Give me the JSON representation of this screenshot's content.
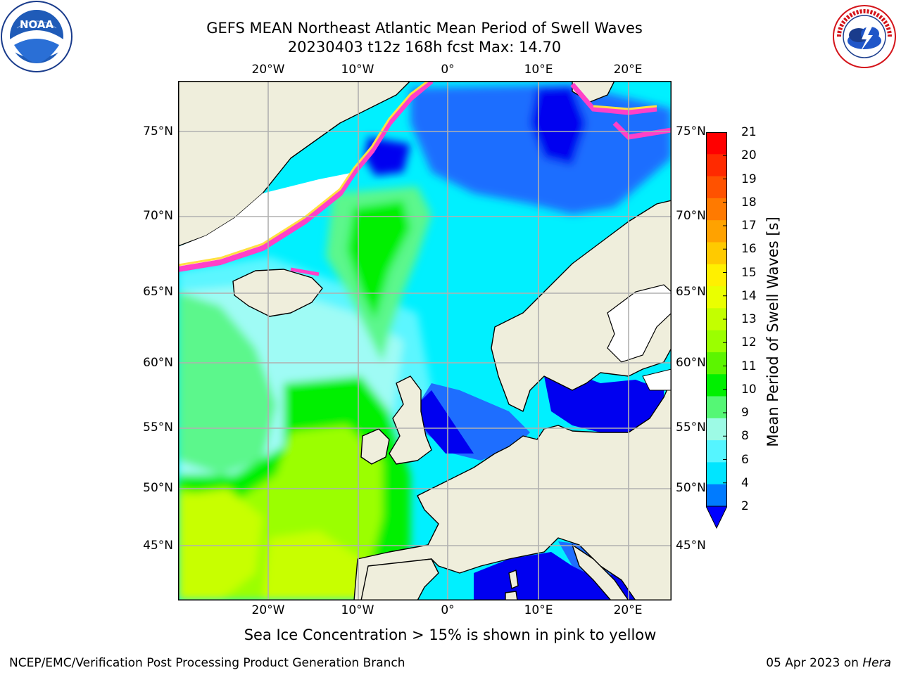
{
  "header": {
    "title": "GEFS MEAN Northeast Atlantic Mean Period of Swell Waves",
    "subtitle": "20230403 t12z 168h fcst   Max: 14.70"
  },
  "logos": {
    "left": "NOAA",
    "left_ring": "NATIONAL OCEANIC AND ATMOSPHERIC ADMINISTRATION · U.S. DEPARTMENT OF COMMERCE",
    "right_ring": "NATIONAL WEATHER SERVICE"
  },
  "axes": {
    "lon_labels": [
      "20°W",
      "10°W",
      "0°",
      "10°E",
      "20°E"
    ],
    "lat_labels": [
      "75°N",
      "70°N",
      "65°N",
      "60°N",
      "55°N",
      "50°N",
      "45°N"
    ],
    "lon_range": [
      -30,
      25
    ],
    "lat_range": [
      41,
      78
    ],
    "grid": true
  },
  "colorbar": {
    "label": "Mean Period of Swell Waves [s]",
    "ticks": [
      "21",
      "20",
      "19",
      "18",
      "17",
      "16",
      "15",
      "14",
      "13",
      "12",
      "11",
      "10",
      "9",
      "8",
      "6",
      "4",
      "2"
    ],
    "extend": "min",
    "colors": [
      "#ff0000",
      "#ff2a00",
      "#ff5200",
      "#ff7a00",
      "#ffa200",
      "#ffca00",
      "#fff000",
      "#eaff00",
      "#c3ff00",
      "#9bff00",
      "#5cf500",
      "#00f000",
      "#55f775",
      "#9dfae5",
      "#55f5ff",
      "#00e5ff",
      "#007bff",
      "#0000ff"
    ]
  },
  "note": "Sea Ice Concentration > 15% is shown in pink to yellow",
  "footer": {
    "left": "NCEP/EMC/Verification Post Processing Product Generation Branch",
    "date": "05 Apr 2023 on ",
    "machine": "Hera"
  },
  "colors": {
    "land": "#efeedc",
    "deep_blue": "#0000f0",
    "mid_blue": "#1e6eff",
    "cyan": "#00f0ff",
    "light_cyan": "#5cf6ff",
    "pale": "#9ffbf5",
    "green_light": "#5cf78c",
    "green": "#00f000",
    "yellowgreen": "#9bff00",
    "yellow": "#c8ff00",
    "ice_pink": "#ff40c8",
    "ice_yellow": "#ffe040",
    "grid": "#b0b0b0"
  }
}
